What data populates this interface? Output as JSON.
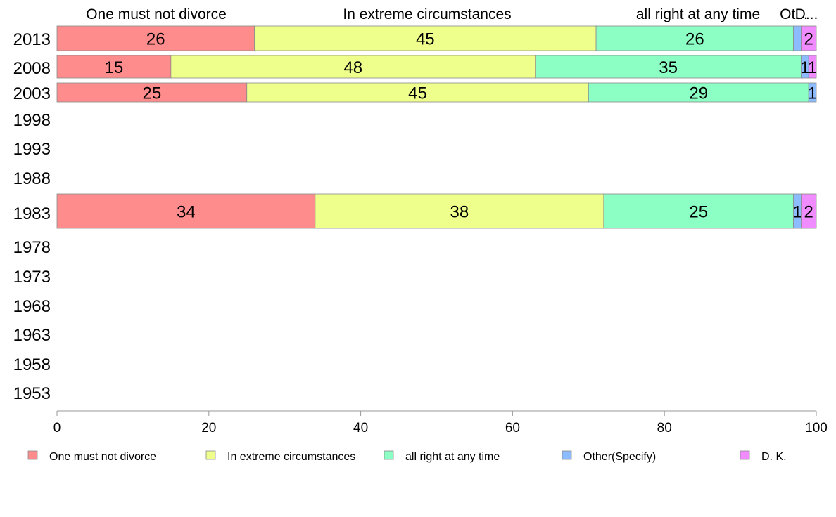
{
  "chart_data": {
    "type": "bar",
    "orientation": "horizontal",
    "stacked": true,
    "xlim": [
      0,
      100
    ],
    "x_ticks": [
      "0",
      "20",
      "40",
      "60",
      "80",
      "100"
    ],
    "grid": false,
    "legend_position": "bottom",
    "categories": [
      "2013",
      "2008",
      "2003",
      "1998",
      "1993",
      "1988",
      "1983",
      "1978",
      "1973",
      "1968",
      "1963",
      "1958",
      "1953"
    ],
    "series": [
      {
        "name": "One must not divorce",
        "color": "#ff8c8c",
        "values": [
          26,
          15,
          25,
          null,
          null,
          null,
          34,
          null,
          null,
          null,
          null,
          null,
          null
        ]
      },
      {
        "name": "In extreme circumstances",
        "color": "#eeff8c",
        "values": [
          45,
          48,
          45,
          null,
          null,
          null,
          38,
          null,
          null,
          null,
          null,
          null,
          null
        ]
      },
      {
        "name": "all right at any time",
        "color": "#8cffc4",
        "values": [
          26,
          35,
          29,
          null,
          null,
          null,
          25,
          null,
          null,
          null,
          null,
          null,
          null
        ]
      },
      {
        "name": "Other(Specify)",
        "color": "#8cbcff",
        "values": [
          1,
          1,
          1,
          null,
          null,
          null,
          1,
          null,
          null,
          null,
          null,
          null,
          null
        ]
      },
      {
        "name": "D. K.",
        "color": "#f08cff",
        "values": [
          2,
          1,
          0,
          null,
          null,
          null,
          2,
          null,
          null,
          null,
          null,
          null,
          null
        ]
      }
    ],
    "data_labels": [
      [
        "26",
        "45",
        "26",
        "",
        "2"
      ],
      [
        "15",
        "48",
        "35",
        "1",
        "1"
      ],
      [
        "25",
        "45",
        "29",
        "1",
        ""
      ],
      [],
      [],
      [],
      [
        "34",
        "38",
        "25",
        "1",
        "2"
      ],
      [],
      [],
      [],
      [],
      [],
      []
    ],
    "header_labels": [
      "One must not divorce",
      "In extreme circumstances",
      "all right at any time",
      "Ot...",
      "D..."
    ]
  }
}
